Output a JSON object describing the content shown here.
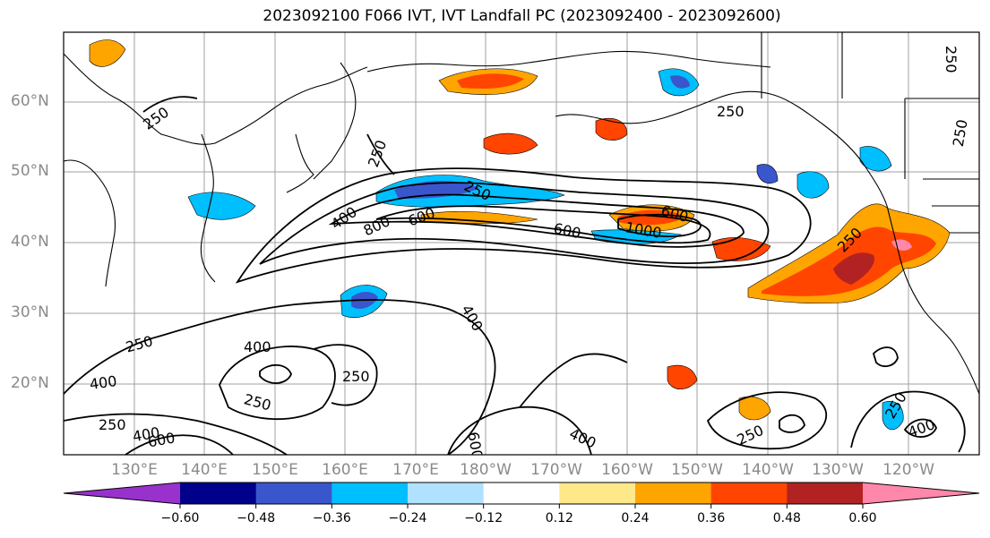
{
  "title": "2023092100 F066 IVT, IVT Landfall PC (2023092400 - 2023092600)",
  "lat_labels": [
    "60°N",
    "50°N",
    "40°N",
    "30°N",
    "20°N"
  ],
  "lon_labels": [
    "130°E",
    "140°E",
    "150°E",
    "160°E",
    "170°E",
    "180°W",
    "170°W",
    "160°W",
    "150°W",
    "140°W",
    "130°W",
    "120°W"
  ],
  "contour_labels": [
    "250",
    "250",
    "250",
    "250",
    "400",
    "800",
    "600",
    "600",
    "1000",
    "600",
    "250",
    "250",
    "400",
    "250",
    "400",
    "400",
    "250",
    "250",
    "400",
    "600",
    "400",
    "600",
    "250",
    "250",
    "400",
    "250",
    "250"
  ],
  "colorbar": {
    "colors": [
      "#9932cc",
      "#00008b",
      "#3a56cc",
      "#00bfff",
      "#b0e2ff",
      "#ffffff",
      "#ffe88a",
      "#ffa500",
      "#ff4500",
      "#b22222",
      "#ff88aa"
    ],
    "tick_labels": [
      "−0.60",
      "−0.48",
      "−0.36",
      "−0.24",
      "−0.12",
      "0.12",
      "0.24",
      "0.36",
      "0.48",
      "0.60"
    ]
  }
}
